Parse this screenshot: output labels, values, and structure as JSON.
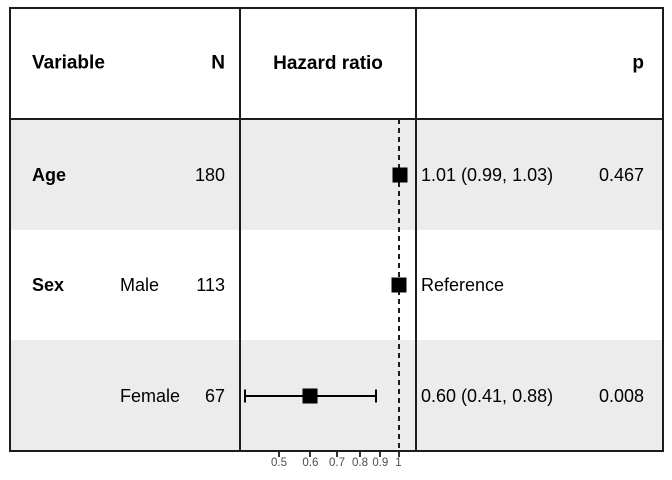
{
  "header": {
    "variable": "Variable",
    "n": "N",
    "hazard_ratio": "Hazard ratio",
    "p": "p"
  },
  "rows": [
    {
      "variable": "Age",
      "level": "",
      "n": "180",
      "estimate_label": "1.01 (0.99, 1.03)",
      "p": "0.467"
    },
    {
      "variable": "Sex",
      "level": "Male",
      "n": "113",
      "estimate_label": "Reference",
      "p": ""
    },
    {
      "variable": "",
      "level": "Female",
      "n": "67",
      "estimate_label": "0.60 (0.41, 0.88)",
      "p": "0.008"
    }
  ],
  "chart_data": {
    "type": "scatter",
    "subtype": "forest-plot",
    "title": "",
    "xlabel": "Hazard ratio",
    "x_scale": "log10",
    "x_ticks": [
      0.5,
      0.6,
      0.7,
      0.8,
      0.9,
      1
    ],
    "x_tick_labels": [
      "0.5",
      "0.6",
      "0.7",
      "0.8",
      "0.9",
      "1"
    ],
    "xlim": [
      0.39,
      1.1
    ],
    "reference_line_x": 1,
    "grid": false,
    "legend": false,
    "points": [
      {
        "row": 0,
        "term": "Age",
        "n": 180,
        "hr": 1.01,
        "ci_low": 0.99,
        "ci_high": 1.03,
        "p_value": 0.467,
        "reference": false
      },
      {
        "row": 1,
        "term": "Sex Male",
        "n": 113,
        "hr": 1.0,
        "ci_low": null,
        "ci_high": null,
        "p_value": null,
        "reference": true
      },
      {
        "row": 2,
        "term": "Sex Female",
        "n": 67,
        "hr": 0.6,
        "ci_low": 0.41,
        "ci_high": 0.88,
        "p_value": 0.008,
        "reference": false
      }
    ]
  },
  "colors": {
    "band": "#ececec",
    "line": "#1c1c1c",
    "marker": "#000000",
    "axis_text": "#4d4d4d",
    "background": "#ffffff"
  }
}
